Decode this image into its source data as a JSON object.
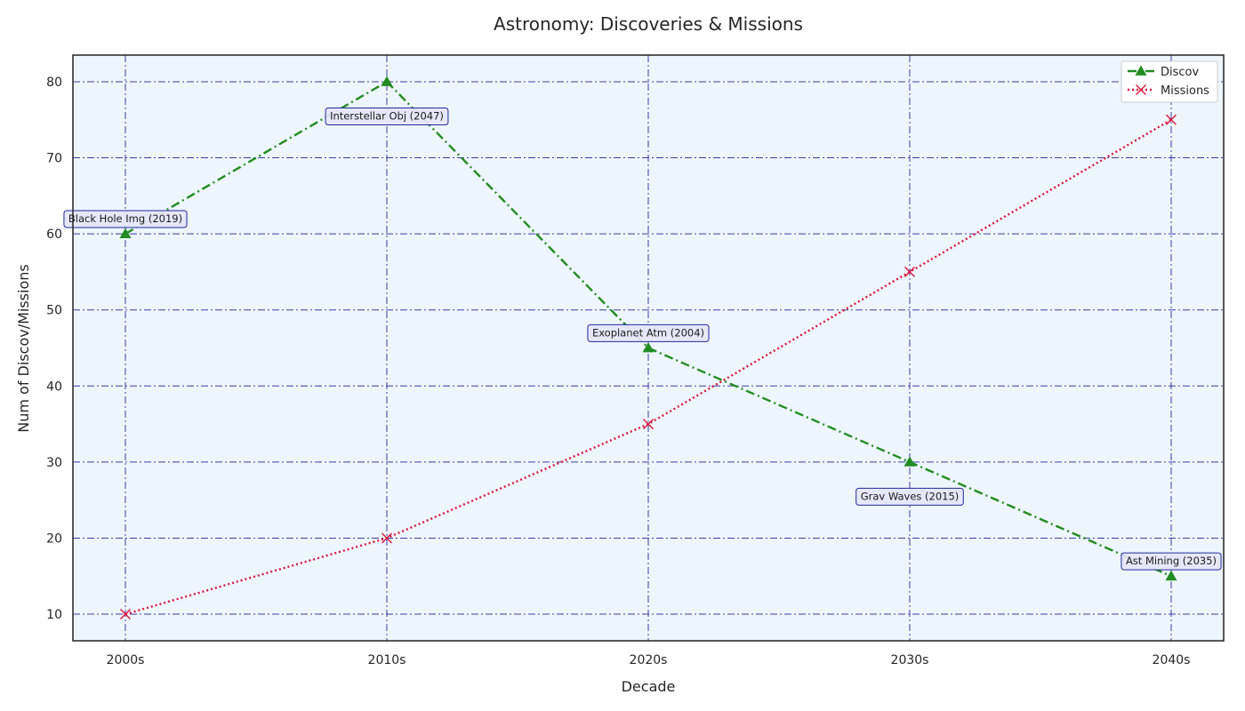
{
  "chart_data": {
    "type": "line",
    "title": "Astronomy: Discoveries & Missions",
    "xlabel": "Decade",
    "ylabel": "Num of Discov/Missions",
    "categories": [
      "2000s",
      "2010s",
      "2020s",
      "2030s",
      "2040s"
    ],
    "ylim": [
      6.5,
      83.5
    ],
    "yticks": [
      10,
      20,
      30,
      40,
      50,
      60,
      70,
      80
    ],
    "grid": true,
    "legend_position": "top-right",
    "series": [
      {
        "name": "Discov",
        "values": [
          60,
          80,
          45,
          30,
          15
        ],
        "color": "#228B22",
        "marker": "triangle",
        "line_style": "dash-dot"
      },
      {
        "name": "Missions",
        "values": [
          10,
          20,
          35,
          55,
          75
        ],
        "color": "#DC143C",
        "marker": "x",
        "line_style": "dotted"
      }
    ],
    "annotations": [
      {
        "text": "Black Hole Img (2019)",
        "category": "2000s",
        "value": 60
      },
      {
        "text": "Interstellar Obj (2047)",
        "category": "2010s",
        "value": 80
      },
      {
        "text": "Exoplanet Atm (2004)",
        "category": "2020s",
        "value": 45
      },
      {
        "text": "Grav Waves (2015)",
        "category": "2030s",
        "value": 30
      },
      {
        "text": "Ast Mining (2035)",
        "category": "2040s",
        "value": 15
      }
    ]
  }
}
